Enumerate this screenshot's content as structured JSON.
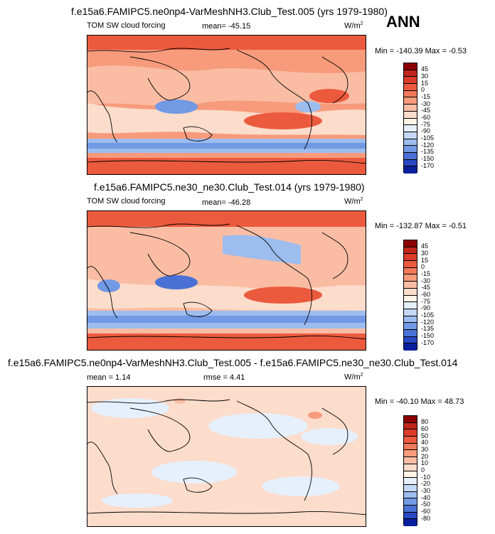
{
  "season": "ANN",
  "panels": [
    {
      "id": "p1",
      "title": "f.e15a6.FAMIPC5.ne0np4-VarMeshNH3.Club_Test.005 (yrs 1979-1980)",
      "left_label": "TOM SW cloud forcing",
      "center_label": "mean= -45.15",
      "units": "W/m",
      "units_sup": "2",
      "minmax": "Min = -140.39 Max = -0.53",
      "ticks": [
        "45",
        "30",
        "15",
        "0",
        "-15",
        "-30",
        "-45",
        "-60",
        "-75",
        "-90",
        "-105",
        "-120",
        "-135",
        "-150",
        "-170"
      ],
      "colors": [
        "#8b0000",
        "#c0261c",
        "#dc3c2a",
        "#ec5a3e",
        "#f37a5a",
        "#f79b7c",
        "#fabda4",
        "#fcdccb",
        "#fff3e6",
        "#e6f0fc",
        "#c4d9f6",
        "#9dbdef",
        "#7199e4",
        "#4a72d6",
        "#2848c4",
        "#0a1f9c"
      ],
      "chart_data": {
        "type": "heatmap",
        "title": "f.e15a6.FAMIPC5.ne0np4-VarMeshNH3.Club_Test.005 (yrs 1979-1980)",
        "variable": "TOM SW cloud forcing",
        "units": "W/m2",
        "mean": -45.15,
        "min": -140.39,
        "max": -0.53,
        "levels": [
          -170,
          -150,
          -135,
          -120,
          -105,
          -90,
          -75,
          -60,
          -45,
          -30,
          -15,
          0,
          15,
          30,
          45
        ]
      }
    },
    {
      "id": "p2",
      "title": "f.e15a6.FAMIPC5.ne30_ne30.Club_Test.014 (yrs 1979-1980)",
      "left_label": "TOM SW cloud forcing",
      "center_label": "mean= -46.28",
      "units": "W/m",
      "units_sup": "2",
      "minmax": "Min = -132.87 Max = -0.51",
      "ticks": [
        "45",
        "30",
        "15",
        "0",
        "-15",
        "-30",
        "-45",
        "-60",
        "-75",
        "-90",
        "-105",
        "-120",
        "-135",
        "-150",
        "-170"
      ],
      "colors": [
        "#8b0000",
        "#c0261c",
        "#dc3c2a",
        "#ec5a3e",
        "#f37a5a",
        "#f79b7c",
        "#fabda4",
        "#fcdccb",
        "#fff3e6",
        "#e6f0fc",
        "#c4d9f6",
        "#9dbdef",
        "#7199e4",
        "#4a72d6",
        "#2848c4",
        "#0a1f9c"
      ],
      "chart_data": {
        "type": "heatmap",
        "title": "f.e15a6.FAMIPC5.ne30_ne30.Club_Test.014 (yrs 1979-1980)",
        "variable": "TOM SW cloud forcing",
        "units": "W/m2",
        "mean": -46.28,
        "min": -132.87,
        "max": -0.51,
        "levels": [
          -170,
          -150,
          -135,
          -120,
          -105,
          -90,
          -75,
          -60,
          -45,
          -30,
          -15,
          0,
          15,
          30,
          45
        ]
      }
    },
    {
      "id": "p3",
      "title": "f.e15a6.FAMIPC5.ne0np4-VarMeshNH3.Club_Test.005 - f.e15a6.FAMIPC5.ne30_ne30.Club_Test.014",
      "left_label": "mean = 1.14",
      "center_label": "rmse = 4.41",
      "units": "W/m",
      "units_sup": "2",
      "minmax": "Min = -40.10 Max = 48.73",
      "ticks": [
        "80",
        "60",
        "50",
        "40",
        "30",
        "20",
        "10",
        "0",
        "-10",
        "-20",
        "-30",
        "-40",
        "-50",
        "-60",
        "-80"
      ],
      "colors": [
        "#8b0000",
        "#c0261c",
        "#dc3c2a",
        "#ec5a3e",
        "#f37a5a",
        "#f79b7c",
        "#fabda4",
        "#fcdccb",
        "#fff3e6",
        "#e6f0fc",
        "#c4d9f6",
        "#9dbdef",
        "#7199e4",
        "#4a72d6",
        "#2848c4",
        "#0a1f9c"
      ],
      "chart_data": {
        "type": "heatmap",
        "title": "f.e15a6.FAMIPC5.ne0np4-VarMeshNH3.Club_Test.005 - f.e15a6.FAMIPC5.ne30_ne30.Club_Test.014",
        "units": "W/m2",
        "mean": 1.14,
        "rmse": 4.41,
        "min": -40.1,
        "max": 48.73,
        "levels": [
          -80,
          -60,
          -50,
          -40,
          -30,
          -20,
          -10,
          0,
          10,
          20,
          30,
          40,
          50,
          60,
          80
        ]
      }
    }
  ]
}
